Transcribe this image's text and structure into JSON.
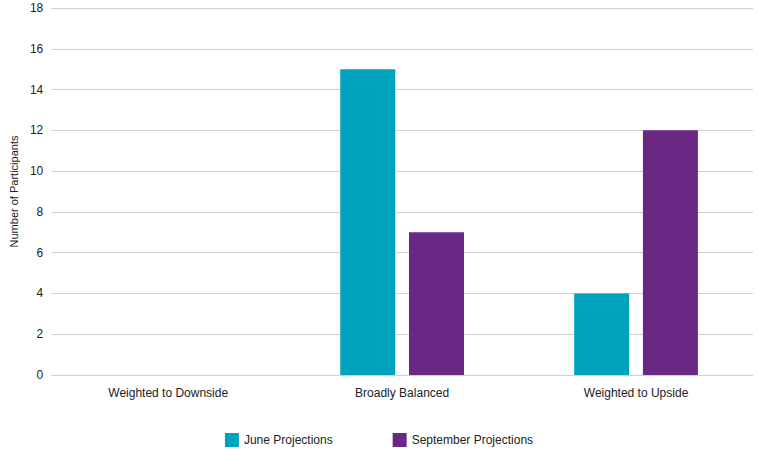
{
  "chart_data": {
    "type": "bar",
    "categories": [
      "Weighted to Downside",
      "Broadly Balanced",
      "Weighted to Upside"
    ],
    "series": [
      {
        "name": "June Projections",
        "color": "#00a3bd",
        "values": [
          0,
          15,
          4
        ]
      },
      {
        "name": "September Projections",
        "color": "#692883",
        "values": [
          0,
          7,
          12
        ]
      }
    ],
    "ylabel": "Number of Participants",
    "ylim": [
      0,
      18
    ],
    "yticks": [
      0,
      2,
      4,
      6,
      8,
      10,
      12,
      14,
      16,
      18
    ],
    "grid": true,
    "legend": "bottom"
  }
}
